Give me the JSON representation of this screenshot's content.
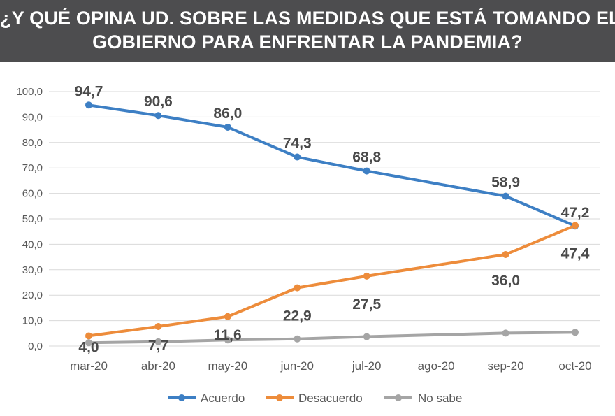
{
  "header": {
    "title_line1": "¿Y QUÉ OPINA UD. SOBRE LAS MEDIDAS QUE ESTÁ TOMANDO EL",
    "title_line2": "GOBIERNO PARA ENFRENTAR LA PANDEMIA?"
  },
  "chart_data": {
    "type": "line",
    "title": "¿Y QUÉ OPINA UD. SOBRE LAS MEDIDAS QUE ESTÁ TOMANDO EL GOBIERNO PARA ENFRENTAR LA PANDEMIA?",
    "categories": [
      "mar-20",
      "abr-20",
      "may-20",
      "jun-20",
      "jul-20",
      "ago-20",
      "sep-20",
      "oct-20"
    ],
    "y_ticks": [
      "0,0",
      "10,0",
      "20,0",
      "30,0",
      "40,0",
      "50,0",
      "60,0",
      "70,0",
      "80,0",
      "90,0",
      "100,0"
    ],
    "ylim": [
      0,
      100
    ],
    "grid": true,
    "legend_position": "bottom",
    "series": [
      {
        "name": "Acuerdo",
        "color": "#3d7fc4",
        "values": [
          94.7,
          90.6,
          86.0,
          74.3,
          68.8,
          null,
          58.9,
          47.2
        ],
        "labels": [
          "94,7",
          "90,6",
          "86,0",
          "74,3",
          "68,8",
          "",
          "58,9",
          "47,2"
        ]
      },
      {
        "name": "Desacuerdo",
        "color": "#ed8c3b",
        "values": [
          4.0,
          7.7,
          11.6,
          22.9,
          27.5,
          null,
          36.0,
          47.4
        ],
        "labels": [
          "4,0",
          "7,7",
          "11,6",
          "22,9",
          "27,5",
          "",
          "36,0",
          "47,4"
        ]
      },
      {
        "name": "No sabe",
        "color": "#a5a5a5",
        "values": [
          1.3,
          1.7,
          2.4,
          2.8,
          3.7,
          null,
          5.1,
          5.4
        ],
        "labels": [
          "",
          "",
          "",
          "",
          "",
          "",
          "",
          ""
        ]
      }
    ]
  }
}
